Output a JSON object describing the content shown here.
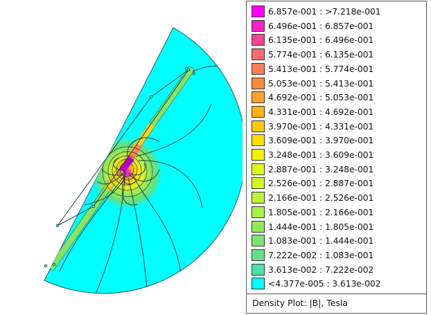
{
  "legend": {
    "caption": "Density Plot: |B|, Tesla",
    "entries": [
      {
        "label": "6.857e-001 : >7.218e-001",
        "color": "#ff00ff"
      },
      {
        "label": "6.496e-001 : 6.857e-001",
        "color": "#f520c8"
      },
      {
        "label": "6.135e-001 : 6.496e-001",
        "color": "#f54492"
      },
      {
        "label": "5.774e-001 : 6.135e-001",
        "color": "#f56a6e"
      },
      {
        "label": "5.413e-001 : 5.774e-001",
        "color": "#f97d55"
      },
      {
        "label": "5.053e-001 : 5.413e-001",
        "color": "#fb8a3d"
      },
      {
        "label": "4.692e-001 : 5.053e-001",
        "color": "#fda22b"
      },
      {
        "label": "4.331e-001 : 4.692e-001",
        "color": "#ffb41e"
      },
      {
        "label": "3.970e-001 : 4.331e-001",
        "color": "#ffc80c"
      },
      {
        "label": "3.609e-001 : 3.970e-001",
        "color": "#ffe000"
      },
      {
        "label": "3.248e-001 : 3.609e-001",
        "color": "#f2f200"
      },
      {
        "label": "2.887e-001 : 3.248e-001",
        "color": "#e2f71a"
      },
      {
        "label": "2.526e-001 : 2.887e-001",
        "color": "#d2f52a"
      },
      {
        "label": "2.166e-001 : 2.526e-001",
        "color": "#bdf23a"
      },
      {
        "label": "1.805e-001 : 2.166e-001",
        "color": "#a8ef48"
      },
      {
        "label": "1.444e-001 : 1.805e-001",
        "color": "#90ea58"
      },
      {
        "label": "1.083e-001 : 1.444e-001",
        "color": "#7be46c"
      },
      {
        "label": "7.222e-002 : 1.083e-001",
        "color": "#63df86"
      },
      {
        "label": "3.613e-002 : 7.222e-002",
        "color": "#48e0aa"
      },
      {
        "label": "<4.377e-005 : 3.613e-002",
        "color": "#00ffff"
      }
    ]
  },
  "plot": {
    "background_color": "#00ffff",
    "hotspot_color": "#ff00ff"
  }
}
